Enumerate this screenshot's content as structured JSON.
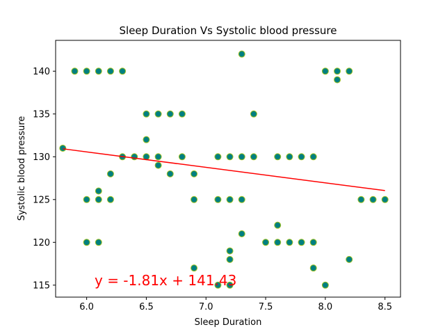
{
  "chart_data": {
    "type": "scatter",
    "title": "Sleep Duration Vs Systolic blood pressure",
    "xlabel": "Sleep Duration",
    "ylabel": "Systolic blood pressure",
    "xlim": [
      5.74,
      8.63
    ],
    "ylim": [
      113.6,
      143.6
    ],
    "xticks": [
      6.0,
      6.5,
      7.0,
      7.5,
      8.0,
      8.5
    ],
    "xtick_labels": [
      "6.0",
      "6.5",
      "7.0",
      "7.5",
      "8.0",
      "8.5"
    ],
    "yticks": [
      115,
      120,
      125,
      130,
      135,
      140
    ],
    "ytick_labels": [
      "115",
      "120",
      "125",
      "130",
      "135",
      "140"
    ],
    "grid": false,
    "marker_color": "#008080",
    "marker_edge_color": "#a0c020",
    "regression_color": "#ff0000",
    "annotation_color": "#ff0000",
    "regression": {
      "slope": -1.81,
      "intercept": 141.43,
      "x_range": [
        5.8,
        8.5
      ]
    },
    "annotation": "y = -1.81x + 141.43",
    "points": [
      {
        "x": 5.8,
        "y": 131
      },
      {
        "x": 5.9,
        "y": 140
      },
      {
        "x": 6.0,
        "y": 140
      },
      {
        "x": 6.1,
        "y": 140
      },
      {
        "x": 6.2,
        "y": 140
      },
      {
        "x": 6.3,
        "y": 140
      },
      {
        "x": 6.0,
        "y": 125
      },
      {
        "x": 6.1,
        "y": 125
      },
      {
        "x": 6.2,
        "y": 125
      },
      {
        "x": 6.1,
        "y": 126
      },
      {
        "x": 6.0,
        "y": 120
      },
      {
        "x": 6.1,
        "y": 120
      },
      {
        "x": 6.2,
        "y": 128
      },
      {
        "x": 6.3,
        "y": 130
      },
      {
        "x": 6.4,
        "y": 130
      },
      {
        "x": 6.5,
        "y": 130
      },
      {
        "x": 6.6,
        "y": 130
      },
      {
        "x": 6.6,
        "y": 129
      },
      {
        "x": 6.5,
        "y": 132
      },
      {
        "x": 6.5,
        "y": 135
      },
      {
        "x": 6.6,
        "y": 135
      },
      {
        "x": 6.7,
        "y": 135
      },
      {
        "x": 6.8,
        "y": 135
      },
      {
        "x": 6.7,
        "y": 128
      },
      {
        "x": 6.8,
        "y": 130
      },
      {
        "x": 6.9,
        "y": 128
      },
      {
        "x": 6.9,
        "y": 125
      },
      {
        "x": 6.9,
        "y": 117
      },
      {
        "x": 7.1,
        "y": 130
      },
      {
        "x": 7.2,
        "y": 130
      },
      {
        "x": 7.3,
        "y": 130
      },
      {
        "x": 7.4,
        "y": 130
      },
      {
        "x": 7.1,
        "y": 125
      },
      {
        "x": 7.2,
        "y": 125
      },
      {
        "x": 7.3,
        "y": 125
      },
      {
        "x": 7.1,
        "y": 115
      },
      {
        "x": 7.2,
        "y": 115
      },
      {
        "x": 7.2,
        "y": 118
      },
      {
        "x": 7.2,
        "y": 119
      },
      {
        "x": 7.3,
        "y": 121
      },
      {
        "x": 7.3,
        "y": 142
      },
      {
        "x": 7.4,
        "y": 135
      },
      {
        "x": 7.5,
        "y": 120
      },
      {
        "x": 7.6,
        "y": 120
      },
      {
        "x": 7.7,
        "y": 120
      },
      {
        "x": 7.8,
        "y": 120
      },
      {
        "x": 7.9,
        "y": 120
      },
      {
        "x": 7.6,
        "y": 122
      },
      {
        "x": 7.6,
        "y": 130
      },
      {
        "x": 7.7,
        "y": 130
      },
      {
        "x": 7.8,
        "y": 130
      },
      {
        "x": 7.9,
        "y": 130
      },
      {
        "x": 7.9,
        "y": 117
      },
      {
        "x": 8.0,
        "y": 115
      },
      {
        "x": 8.0,
        "y": 140
      },
      {
        "x": 8.1,
        "y": 140
      },
      {
        "x": 8.2,
        "y": 140
      },
      {
        "x": 8.1,
        "y": 139
      },
      {
        "x": 8.2,
        "y": 118
      },
      {
        "x": 8.3,
        "y": 125
      },
      {
        "x": 8.4,
        "y": 125
      },
      {
        "x": 8.5,
        "y": 125
      }
    ]
  }
}
